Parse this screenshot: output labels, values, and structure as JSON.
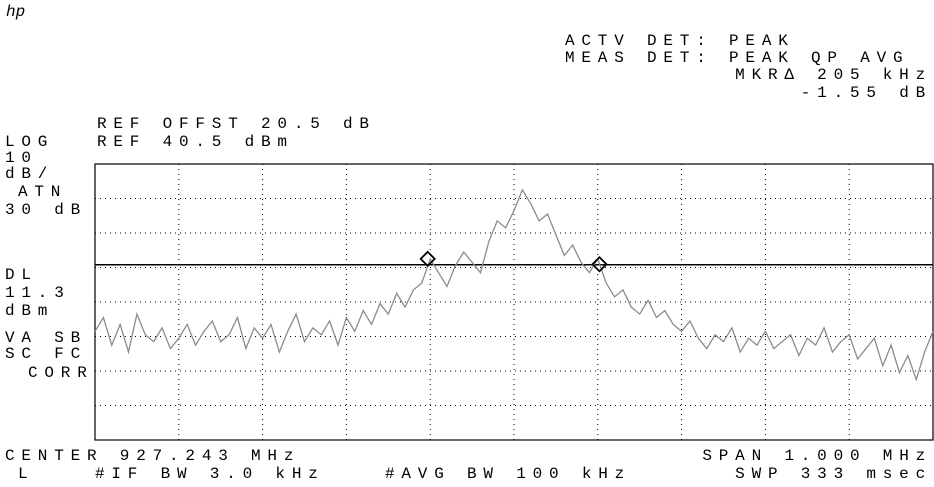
{
  "header": {
    "logo": "hp",
    "status": [
      "ACTV DET: PEAK",
      "MEAS DET: PEAK QP AVG",
      "MKRΔ 205 kHz",
      "-1.55 dB"
    ]
  },
  "chart_data": {
    "type": "line",
    "ref_offset": "REF OFFST 20.5 dB",
    "ref_level": "REF 40.5 dBm",
    "left_annotations": [
      "LOG",
      "10",
      "dB/",
      "ATN",
      "30 dB"
    ],
    "display_line_label": "DL",
    "display_line": 11.3,
    "lower_annotations": [
      "dBm",
      "VA SB",
      "SC FC",
      "CORR"
    ],
    "footer": [
      "CENTER 927.243 MHz",
      "SPAN 1.000 MHz",
      "L",
      "#IF BW 3.0 kHz",
      "#AVG BW 100 kHz",
      "SWP 333 msec"
    ],
    "xlim": [
      926.743,
      927.743
    ],
    "ylim": [
      -39.5,
      40.5
    ],
    "x": [
      926.743,
      926.753,
      926.763,
      926.773,
      926.783,
      926.793,
      926.803,
      926.813,
      926.823,
      926.833,
      926.843,
      926.853,
      926.863,
      926.873,
      926.883,
      926.893,
      926.903,
      926.913,
      926.923,
      926.933,
      926.943,
      926.953,
      926.963,
      926.973,
      926.983,
      926.993,
      927.003,
      927.013,
      927.023,
      927.033,
      927.043,
      927.053,
      927.063,
      927.073,
      927.083,
      927.093,
      927.103,
      927.113,
      927.123,
      927.133,
      927.143,
      927.153,
      927.163,
      927.173,
      927.183,
      927.193,
      927.203,
      927.213,
      927.223,
      927.233,
      927.243,
      927.253,
      927.263,
      927.273,
      927.283,
      927.293,
      927.303,
      927.313,
      927.323,
      927.333,
      927.343,
      927.353,
      927.363,
      927.373,
      927.383,
      927.393,
      927.403,
      927.413,
      927.423,
      927.433,
      927.443,
      927.453,
      927.463,
      927.473,
      927.483,
      927.493,
      927.503,
      927.513,
      927.523,
      927.533,
      927.543,
      927.553,
      927.563,
      927.573,
      927.583,
      927.593,
      927.603,
      927.613,
      927.623,
      927.633,
      927.643,
      927.653,
      927.663,
      927.673,
      927.683,
      927.693,
      927.703,
      927.713,
      927.723,
      927.733,
      927.743
    ],
    "values": [
      -8,
      -4,
      -12,
      -6,
      -14,
      -3,
      -9,
      -11,
      -7,
      -13,
      -10,
      -6,
      -12,
      -8,
      -5,
      -11,
      -9,
      -4,
      -13,
      -7,
      -10,
      -6,
      -14,
      -8,
      -3,
      -11,
      -7,
      -9,
      -5,
      -12,
      -4,
      -8,
      -2,
      -6,
      0,
      -3,
      3,
      -1,
      4,
      6,
      13,
      9,
      5,
      11,
      15,
      12,
      9,
      18,
      24,
      22,
      27,
      33,
      29,
      24,
      26,
      20,
      14,
      17,
      12,
      9,
      13,
      6,
      2,
      4,
      -1,
      -3,
      1,
      -4,
      -2,
      -6,
      -8,
      -5,
      -10,
      -13,
      -9,
      -11,
      -7,
      -14,
      -10,
      -12,
      -8,
      -13,
      -11,
      -9,
      -15,
      -10,
      -12,
      -7,
      -14,
      -11,
      -9,
      -16,
      -13,
      -10,
      -18,
      -12,
      -20,
      -15,
      -22,
      -14,
      -8
    ],
    "color": "#8c8c8c",
    "markers": {
      "x": [
        927.14,
        927.345
      ],
      "values": [
        13,
        11.45
      ]
    },
    "divisions": {
      "x": 10,
      "y": 8
    }
  }
}
